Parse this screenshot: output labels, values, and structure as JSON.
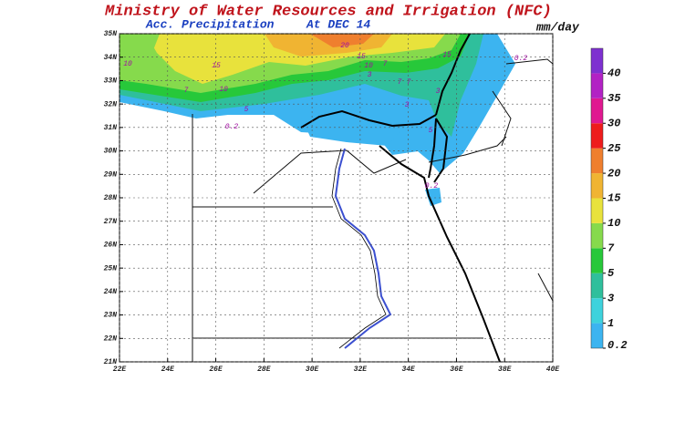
{
  "title": "Ministry of Water Resources and Irrigation (NFC)",
  "subtitle": "Acc. Precipitation",
  "date_label": "At DEC 14",
  "units": "mm/day",
  "map": {
    "xlim": [
      22,
      40
    ],
    "ylim": [
      21,
      35
    ],
    "grid": true,
    "xticks": [
      {
        "value": 22,
        "label": "22E"
      },
      {
        "value": 24,
        "label": "24E"
      },
      {
        "value": 26,
        "label": "26E"
      },
      {
        "value": 28,
        "label": "28E"
      },
      {
        "value": 30,
        "label": "30E"
      },
      {
        "value": 32,
        "label": "32E"
      },
      {
        "value": 34,
        "label": "34E"
      },
      {
        "value": 36,
        "label": "36E"
      },
      {
        "value": 38,
        "label": "38E"
      },
      {
        "value": 40,
        "label": "40E"
      }
    ],
    "yticks": [
      {
        "value": 21,
        "label": "21N"
      },
      {
        "value": 22,
        "label": "22N"
      },
      {
        "value": 23,
        "label": "23N"
      },
      {
        "value": 24,
        "label": "24N"
      },
      {
        "value": 25,
        "label": "25N"
      },
      {
        "value": 26,
        "label": "26N"
      },
      {
        "value": 27,
        "label": "27N"
      },
      {
        "value": 28,
        "label": "28N"
      },
      {
        "value": 29,
        "label": "29N"
      },
      {
        "value": 30,
        "label": "30N"
      },
      {
        "value": 31,
        "label": "31N"
      },
      {
        "value": 32,
        "label": "32N"
      },
      {
        "value": 33,
        "label": "33N"
      },
      {
        "value": 34,
        "label": "34N"
      },
      {
        "value": 35,
        "label": "35N"
      }
    ]
  },
  "colorbar": {
    "levels": [
      0.2,
      1,
      3,
      5,
      7,
      10,
      15,
      20,
      25,
      30,
      35,
      40
    ],
    "colors": [
      "#3cb4f0",
      "#3ed2dc",
      "#2fbf9c",
      "#27c83a",
      "#86da4c",
      "#e8e23c",
      "#f0b432",
      "#ef7f2e",
      "#ee1c1c",
      "#e01890",
      "#b222c4",
      "#7e30d0"
    ]
  },
  "contour_labels": [
    20,
    15,
    10,
    7,
    10,
    15,
    10,
    7,
    3,
    7,
    3,
    5,
    3,
    15,
    0.2,
    0.2,
    0.2,
    5,
    7
  ]
}
